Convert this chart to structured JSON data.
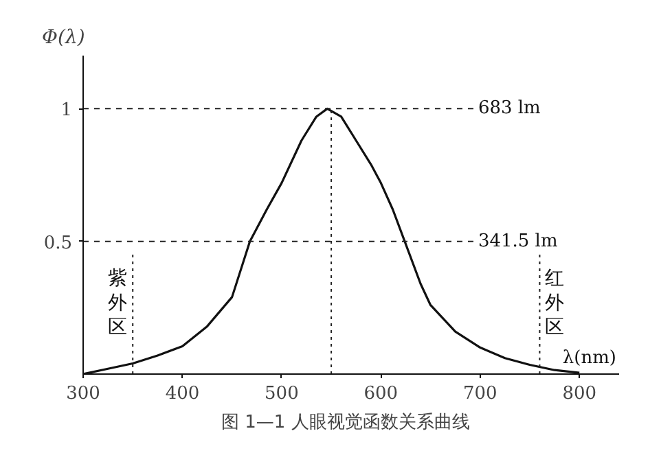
{
  "chart_data": {
    "type": "line",
    "title": "图 1—1   人眼视觉函数关系曲线",
    "xlabel": "λ(nm)",
    "ylabel": "Φ(λ)",
    "x": [
      300,
      325,
      350,
      375,
      400,
      425,
      450,
      468,
      485,
      500,
      520,
      535,
      546,
      560,
      575,
      590,
      600,
      612,
      624,
      640,
      650,
      675,
      700,
      725,
      750,
      775,
      800
    ],
    "series": [
      {
        "color": "#111111",
        "values": [
          0,
          0.02,
          0.04,
          0.07,
          0.105,
          0.18,
          0.29,
          0.5,
          0.62,
          0.72,
          0.88,
          0.97,
          1.0,
          0.97,
          0.88,
          0.79,
          0.72,
          0.62,
          0.5,
          0.34,
          0.26,
          0.16,
          0.1,
          0.06,
          0.035,
          0.015,
          0.005
        ]
      }
    ],
    "xlim": [
      300,
      840
    ],
    "ylim": [
      0,
      1.2
    ],
    "xticks": [
      300,
      400,
      500,
      600,
      700,
      800
    ],
    "yticks": [
      0.5,
      1
    ],
    "grid": false,
    "marker": "none",
    "line_style": "solid",
    "ref_lines": [
      {
        "axis": "y",
        "value": 1,
        "label": "683 lm",
        "line_style": "dashed"
      },
      {
        "axis": "y",
        "value": 0.5,
        "label": "341.5 lm",
        "line_style": "dashed"
      },
      {
        "axis": "x",
        "value": 550,
        "label": null,
        "line_style": "dotted"
      },
      {
        "axis": "x",
        "value": 350,
        "label": "紫外区",
        "line_style": "dotted"
      },
      {
        "axis": "x",
        "value": 760,
        "label": "红外区",
        "line_style": "dotted"
      }
    ]
  }
}
